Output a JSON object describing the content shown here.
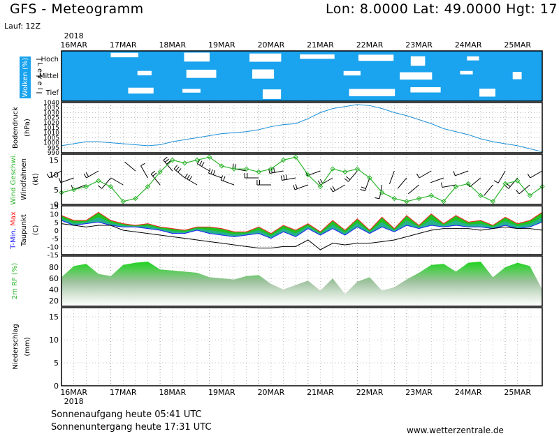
{
  "header": {
    "title": "GFS - Meteogramm",
    "location": "Lon: 8.0000  Lat: 49.0000  Hgt: 17",
    "run": "Lauf: 12Z"
  },
  "footer": {
    "sunrise": "Sonnenaufgang heute 05:41 UTC",
    "sunset": "Sonnenuntergang heute 17:31 UTC",
    "website": "www.wetterzentrale.de"
  },
  "colors": {
    "sky": "#1aa3ee",
    "pressure": "#1a8fd6",
    "wind": "#2db52d",
    "rh_top": "#1ed41e",
    "tmax": "#ff2020",
    "tmin": "#2020ff"
  },
  "chart_data": {
    "type": "line",
    "title": "GFS - Meteogramm",
    "year": "2018",
    "x_ticks": [
      "16MAR",
      "17MAR",
      "18MAR",
      "19MAR",
      "20MAR",
      "21MAR",
      "22MAR",
      "23MAR",
      "24MAR",
      "25MAR"
    ],
    "time_hours": [
      0,
      6,
      12,
      18,
      24,
      30,
      36,
      42,
      48,
      54,
      60,
      66,
      72,
      78,
      84,
      90,
      96,
      102,
      108,
      114,
      120,
      126,
      132,
      138,
      144,
      150,
      156,
      162,
      168,
      174,
      180,
      186,
      192,
      198,
      204,
      210,
      216,
      222,
      228,
      234
    ],
    "clouds": {
      "ylabel": "Wolken (%)",
      "levels": [
        "Hoch",
        "Mittel",
        "Tief"
      ],
      "level_word": "Level"
    },
    "pressure": {
      "ylabel": "Bodendruck (hPa)",
      "ylim": [
        990,
        1040
      ],
      "yticks": [
        990,
        995,
        1000,
        1005,
        1010,
        1015,
        1020,
        1025,
        1030,
        1035,
        1040
      ],
      "values": [
        997,
        999,
        1001,
        1001,
        1000,
        999,
        998,
        997,
        998,
        1001,
        1003,
        1005,
        1007,
        1009,
        1010,
        1011,
        1013,
        1016,
        1018,
        1019,
        1024,
        1030,
        1034,
        1036,
        1038,
        1037,
        1034,
        1030,
        1027,
        1023,
        1019,
        1014,
        1011,
        1008,
        1004,
        1001,
        999,
        997,
        994,
        991
      ]
    },
    "wind": {
      "ylabel": "Wind Geschwi.",
      "ylabel2": "Windfahnen",
      "unit": "(kt)",
      "ylim": [
        0,
        17
      ],
      "yticks": [
        0,
        5,
        10,
        15
      ],
      "values": [
        4,
        5,
        6,
        8,
        6,
        1,
        2,
        6,
        11,
        15,
        14,
        15,
        16,
        13,
        12,
        12,
        11,
        12,
        15,
        16,
        10,
        6,
        12,
        11,
        12,
        9,
        4,
        2,
        1,
        2,
        3,
        1,
        6,
        7,
        3,
        1,
        7,
        8,
        3,
        6
      ],
      "barb_dir_deg": [
        240,
        250,
        250,
        240,
        220,
        300,
        310,
        330,
        320,
        320,
        310,
        300,
        300,
        290,
        290,
        280,
        270,
        270,
        260,
        260,
        250,
        250,
        240,
        240,
        220,
        200,
        190,
        200,
        220,
        230,
        240,
        250,
        260,
        250,
        230,
        220,
        210,
        220,
        230,
        240
      ]
    },
    "temperature": {
      "ylabel": "T-Min, Max",
      "ylabel2": "Taupunkt",
      "unit": "(C)",
      "ylim": [
        -15,
        15
      ],
      "yticks": [
        -15,
        -10,
        -5,
        0,
        5,
        10,
        15
      ],
      "tmax": [
        9,
        6,
        6,
        11,
        6,
        4,
        3,
        4,
        2,
        1,
        0,
        2,
        2,
        1,
        -1,
        -1,
        2,
        -2,
        3,
        0,
        4,
        -1,
        6,
        0,
        7,
        0,
        8,
        1,
        9,
        3,
        10,
        4,
        9,
        5,
        6,
        3,
        8,
        4,
        6,
        11
      ],
      "tmin": [
        6,
        3,
        4,
        5,
        3,
        2,
        2,
        1,
        0,
        -2,
        -2,
        0,
        -2,
        -3,
        -4,
        -3,
        -2,
        -5,
        -1,
        -4,
        1,
        -3,
        1,
        -3,
        2,
        -2,
        2,
        -1,
        3,
        1,
        3,
        2,
        3,
        2,
        2,
        1,
        3,
        1,
        2,
        5
      ],
      "dewpoint": [
        4,
        3,
        2,
        3,
        3,
        0,
        -1,
        -2,
        -3,
        -4,
        -5,
        -6,
        -7,
        -8,
        -9,
        -10,
        -11,
        -11,
        -10,
        -10,
        -6,
        -12,
        -8,
        -9,
        -8,
        -8,
        -7,
        -6,
        -4,
        -2,
        0,
        1,
        1,
        1,
        0,
        1,
        2,
        1,
        1,
        0
      ]
    },
    "humidity": {
      "ylabel": "2m RF (%)",
      "ylim": [
        10,
        100
      ],
      "yticks": [
        20,
        40,
        60,
        80
      ],
      "values": [
        62,
        82,
        86,
        68,
        64,
        84,
        88,
        90,
        76,
        74,
        72,
        70,
        62,
        60,
        58,
        64,
        66,
        50,
        40,
        48,
        56,
        38,
        60,
        32,
        54,
        62,
        38,
        44,
        58,
        70,
        84,
        86,
        72,
        88,
        90,
        62,
        80,
        88,
        82,
        40
      ]
    },
    "precipitation": {
      "ylabel": "Niederschlag (mm)",
      "ylim": [
        0,
        17
      ],
      "yticks": [
        0,
        5,
        10,
        15
      ],
      "values": [
        0,
        0,
        0,
        0,
        0,
        0,
        0,
        0,
        0,
        0,
        0,
        0,
        0,
        0,
        0,
        0,
        0,
        0,
        0,
        0,
        0,
        0,
        0,
        0,
        0,
        0,
        0,
        0,
        0,
        0,
        0,
        0,
        0,
        0,
        0,
        0,
        0,
        0,
        0,
        0
      ]
    }
  }
}
